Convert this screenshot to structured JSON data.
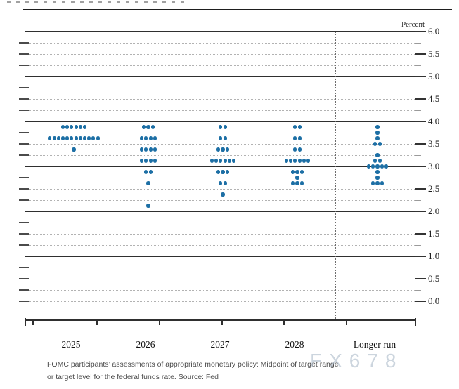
{
  "header": {
    "percent_label": "Percent"
  },
  "chart_data": {
    "type": "scatter",
    "description": "FOMC dot plot - appropriate federal funds rate projections",
    "y_axis": {
      "min": 0.0,
      "max": 6.0,
      "grid_step": 0.25,
      "label_step": 0.5,
      "solid_line_step": 1.0,
      "unit": "Percent"
    },
    "categories": [
      "2025",
      "2026",
      "2027",
      "2028",
      "Longer run"
    ],
    "separator_before_category": "Longer run",
    "dot_color": "#1d6fa5",
    "series": [
      {
        "category": "2025",
        "dots": [
          {
            "rate": 3.875,
            "count": 6
          },
          {
            "rate": 3.625,
            "count": 12
          },
          {
            "rate": 3.375,
            "count": 1
          }
        ]
      },
      {
        "category": "2026",
        "dots": [
          {
            "rate": 3.875,
            "count": 3
          },
          {
            "rate": 3.625,
            "count": 4
          },
          {
            "rate": 3.375,
            "count": 4
          },
          {
            "rate": 3.125,
            "count": 4
          },
          {
            "rate": 2.875,
            "count": 2
          },
          {
            "rate": 2.625,
            "count": 1
          },
          {
            "rate": 2.125,
            "count": 1
          }
        ]
      },
      {
        "category": "2027",
        "dots": [
          {
            "rate": 3.875,
            "count": 2
          },
          {
            "rate": 3.625,
            "count": 2
          },
          {
            "rate": 3.375,
            "count": 3
          },
          {
            "rate": 3.125,
            "count": 6
          },
          {
            "rate": 2.875,
            "count": 3
          },
          {
            "rate": 2.625,
            "count": 2
          },
          {
            "rate": 2.375,
            "count": 1
          }
        ]
      },
      {
        "category": "2028",
        "dots": [
          {
            "rate": 3.875,
            "count": 2
          },
          {
            "rate": 3.625,
            "count": 2
          },
          {
            "rate": 3.375,
            "count": 2
          },
          {
            "rate": 3.125,
            "count": 6
          },
          {
            "rate": 2.875,
            "count": 3
          },
          {
            "rate": 2.75,
            "count": 1
          },
          {
            "rate": 2.625,
            "count": 3
          }
        ]
      },
      {
        "category": "Longer run",
        "dots": [
          {
            "rate": 3.875,
            "count": 1
          },
          {
            "rate": 3.75,
            "count": 1
          },
          {
            "rate": 3.625,
            "count": 1
          },
          {
            "rate": 3.5,
            "count": 2
          },
          {
            "rate": 3.25,
            "count": 1
          },
          {
            "rate": 3.125,
            "count": 2
          },
          {
            "rate": 3.0,
            "count": 5
          },
          {
            "rate": 2.875,
            "count": 1
          },
          {
            "rate": 2.75,
            "count": 1
          },
          {
            "rate": 2.625,
            "count": 3
          }
        ]
      }
    ]
  },
  "caption": {
    "line1": "FOMC participants’ assessments of appropriate monetary policy: Midpoint of target range",
    "line2": "or target level for the federal funds rate. Source: Fed"
  },
  "watermark": "FX678"
}
